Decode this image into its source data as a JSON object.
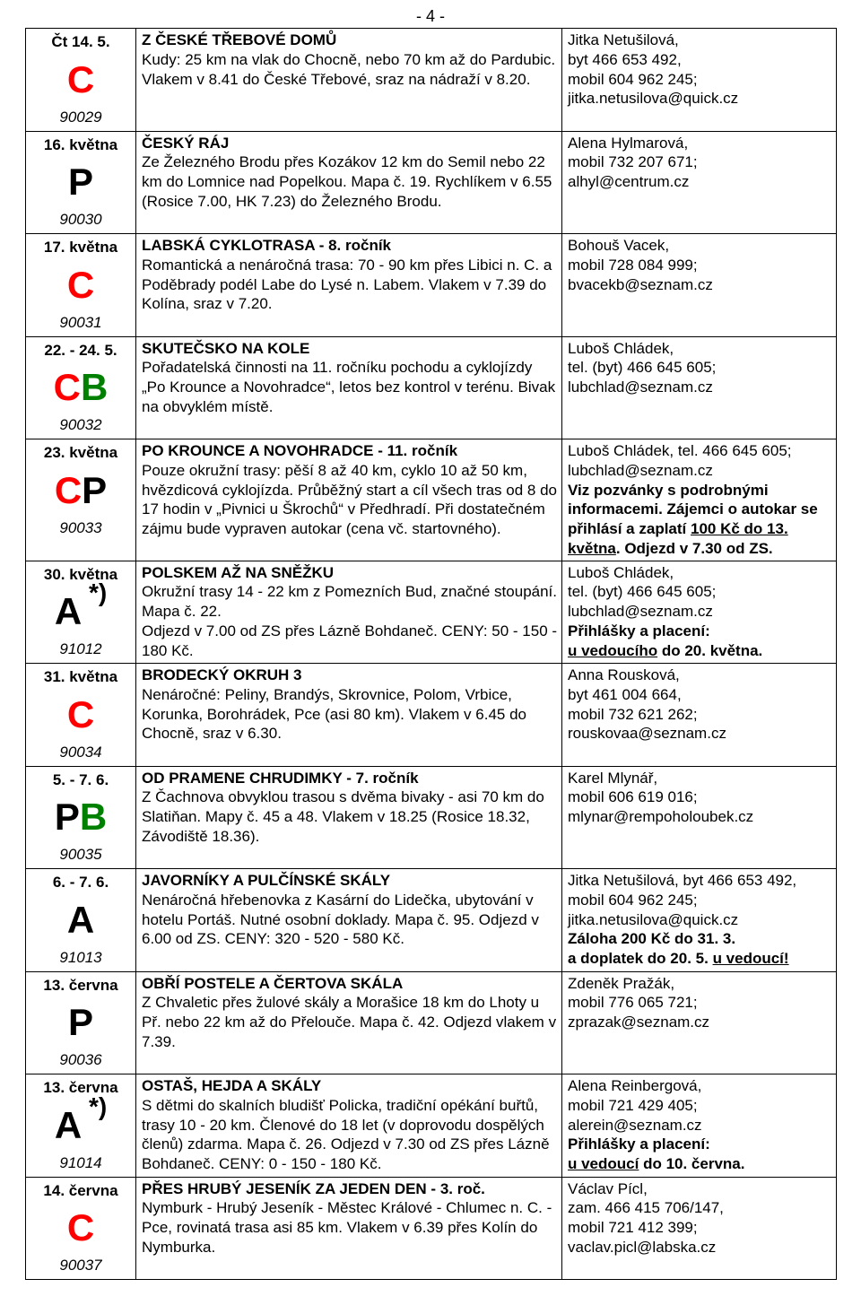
{
  "page_number": "- 4 -",
  "rows": [
    {
      "date": "Čt 14. 5.",
      "code_parts": [
        {
          "text": "C",
          "cls": "code-red"
        }
      ],
      "idnum": "90029",
      "title": "Z ČESKÉ TŘEBOVÉ DOMŮ",
      "desc": "Kudy: 25 km na vlak do Chocně, nebo 70 km až do Pardubic. Vlakem v 8.41 do České Třebové, sraz na nádraží v 8.20.",
      "contact": "Jitka Netušilová,<br>byt 466 653 492,<br>mobil 604 962 245;<br>jitka.netusilova@quick.cz"
    },
    {
      "date": "16. května",
      "code_parts": [
        {
          "text": "P",
          "cls": "code-black"
        }
      ],
      "idnum": "90030",
      "title": "ČESKÝ RÁJ",
      "desc": "Ze Železného Brodu přes Kozákov 12 km do Semil nebo 22 km do Lomnice nad Popelkou. Mapa č. 19. Rychlíkem v 6.55 (Rosice 7.00, HK 7.23) do Železného Brodu.",
      "contact": "Alena Hylmarová,<br>mobil 732 207 671;<br>alhyl@centrum.cz"
    },
    {
      "date": "17. května",
      "code_parts": [
        {
          "text": "C",
          "cls": "code-red"
        }
      ],
      "idnum": "90031",
      "title": "LABSKÁ CYKLOTRASA - 8. ročník",
      "desc": "Romantická a nenáročná trasa: 70 - 90 km přes Libici n. C. a Poděbrady podél Labe do Lysé n. Labem. Vlakem v 7.39 do Kolína, sraz v 7.20.",
      "contact": "Bohouš Vacek,<br>mobil 728 084 999;<br>bvacekb@seznam.cz"
    },
    {
      "date": "22. - 24. 5.",
      "code_parts": [
        {
          "text": "C",
          "cls": "code-red"
        },
        {
          "text": " ",
          "cls": ""
        },
        {
          "text": "B",
          "cls": "code-green"
        }
      ],
      "idnum": "90032",
      "title": "SKUTEČSKO NA KOLE",
      "desc": "Pořadatelská činnosti na 11. ročníku pochodu a cyklojízdy „Po Krounce a Novohradce&#8220;, letos bez kontrol v terénu. Bivak na obvyklém místě.",
      "contact": "Luboš Chládek,<br>tel. (byt) 466 645 605;<br>lubchlad@seznam.cz"
    },
    {
      "date": "23. května",
      "code_parts": [
        {
          "text": "C",
          "cls": "code-red"
        },
        {
          "text": " ",
          "cls": ""
        },
        {
          "text": "P",
          "cls": "code-black"
        }
      ],
      "idnum": "90033",
      "title": "PO KROUNCE A NOVOHRADCE - 11. ročník",
      "desc": "Pouze okružní trasy: pěší 8 až 40 km, cyklo 10 až 50 km, hvězdicová cyklojízda. Průběžný start a cíl všech tras od 8 do 17 hodin v „Pivnici u Škrochů&#8220; v Předhradí. Při dostatečném zájmu bude vypraven autokar (cena vč. startovného).",
      "contact": "Luboš Chládek, tel. 466 645 605;<br>lubchlad@seznam.cz<br><span class=\"bold\">Viz pozvánky s podrobnými informacemi. Zájemci o autokar se přihlásí a zaplatí <span class=\"underline\">100 Kč do 13. května</span>. Odjezd v 7.30 od ZS.</span>"
    },
    {
      "date": "30. května",
      "code_parts": [
        {
          "text": "A",
          "cls": "code-black"
        },
        {
          "text": " *)",
          "cls": "code-black",
          "sup": true
        }
      ],
      "idnum": "91012",
      "title": "POLSKEM AŽ NA SNĚŽKU",
      "desc": "Okružní trasy 14 - 22 km z Pomezních Bud, značné stoupání. Mapa č. 22.<br>Odjezd v 7.00 od ZS přes Lázně Bohdaneč. CENY: 50 - 150 - 180 Kč.",
      "contact": "Luboš Chládek,<br>tel. (byt) 466 645 605;<br>lubchlad@seznam.cz<br><span class=\"bold\">Přihlášky a placení:<br><span class=\"underline\">u vedoucího</span> do 20. května.</span>"
    },
    {
      "date": "31. května",
      "code_parts": [
        {
          "text": "C",
          "cls": "code-red"
        }
      ],
      "idnum": "90034",
      "title": "BRODECKÝ OKRUH 3",
      "desc": "Nenáročné: Peliny, Brandýs, Skrovnice, Polom, Vrbice, Korunka, Borohrádek, Pce (asi 80 km). Vlakem v 6.45 do Chocně, sraz v 6.30.",
      "contact": "Anna Rousková,<br>byt 461 004 664,<br>mobil 732 621 262;<br>rouskovaa@seznam.cz"
    },
    {
      "date": "5. - 7. 6.",
      "code_parts": [
        {
          "text": "P",
          "cls": "code-black"
        },
        {
          "text": " ",
          "cls": ""
        },
        {
          "text": "B",
          "cls": "code-green"
        }
      ],
      "idnum": "90035",
      "title": "OD PRAMENE CHRUDIMKY - 7. ročník",
      "desc": "Z Čachnova obvyklou trasou s dvěma bivaky - asi 70 km do Slatiňan. Mapy č. 45 a 48. Vlakem v 18.25 (Rosice 18.32, Závodiště 18.36).",
      "contact": "Karel Mlynář,<br>mobil 606 619 016;<br>mlynar@rempoholoubek.cz"
    },
    {
      "date": "6. - 7. 6.",
      "code_parts": [
        {
          "text": "A",
          "cls": "code-black"
        }
      ],
      "idnum": "91013",
      "title": "JAVORNÍKY A PULČÍNSKÉ SKÁLY",
      "desc": "Nenáročná hřebenovka z Kasární do Lidečka, ubytování v hotelu Portáš. Nutné osobní doklady. Mapa č. 95. Odjezd v 6.00 od ZS. CENY: 320 - 520 - 580 Kč.",
      "contact": "Jitka Netušilová, byt 466 653 492, mobil 604 962 245;<br>jitka.netusilova@quick.cz<br><span class=\"bold\">Záloha 200 Kč do 31. 3.<br>a doplatek do 20. 5. <span class=\"underline\">u vedoucí!</span></span>"
    },
    {
      "date": "13. června",
      "code_parts": [
        {
          "text": "P",
          "cls": "code-black"
        }
      ],
      "idnum": "90036",
      "title": "OBŘÍ POSTELE A ČERTOVA SKÁLA",
      "desc": "Z Chvaletic přes žulové skály a Morašice 18 km do Lhoty u Př. nebo 22 km až do Přelouče. Mapa č. 42. Odjezd vlakem v 7.39.",
      "contact": "Zdeněk Pražák,<br>mobil 776 065 721;<br>zprazak@seznam.cz"
    },
    {
      "date": "13. června",
      "code_parts": [
        {
          "text": "A",
          "cls": "code-black"
        },
        {
          "text": " *)",
          "cls": "code-black",
          "sup": true
        }
      ],
      "idnum": "91014",
      "title": "OSTAŠ, HEJDA A SKÁLY",
      "desc": "S dětmi do skalních bludišť Policka, tradiční opékání buřtů, trasy 10 - 20 km. Členové do 18 let (v doprovodu dospělých členů) zdarma. Mapa č. 26. Odjezd v 7.30 od ZS přes Lázně Bohdaneč. CENY: 0 - 150 - 180 Kč.",
      "contact": "Alena Reinbergová,<br>mobil 721 429 405;<br>alerein@seznam.cz<br><span class=\"bold\">Přihlášky a placení:<br><span class=\"underline\">u vedoucí</span> do 10. června.</span>"
    },
    {
      "date": "14. června",
      "code_parts": [
        {
          "text": "C",
          "cls": "code-red"
        }
      ],
      "idnum": "90037",
      "title": "PŘES HRUBÝ JESENÍK ZA JEDEN DEN - 3. roč.",
      "desc": "Nymburk - Hrubý Jeseník - Městec Králové - Chlumec n. C. - Pce, rovinatá trasa asi 85 km. Vlakem v 6.39 přes Kolín do Nymburka.",
      "contact": "Václav Pícl,<br>zam. 466 415 706/147,<br>mobil 721 412 399;<br>vaclav.picl@labska.cz"
    }
  ]
}
